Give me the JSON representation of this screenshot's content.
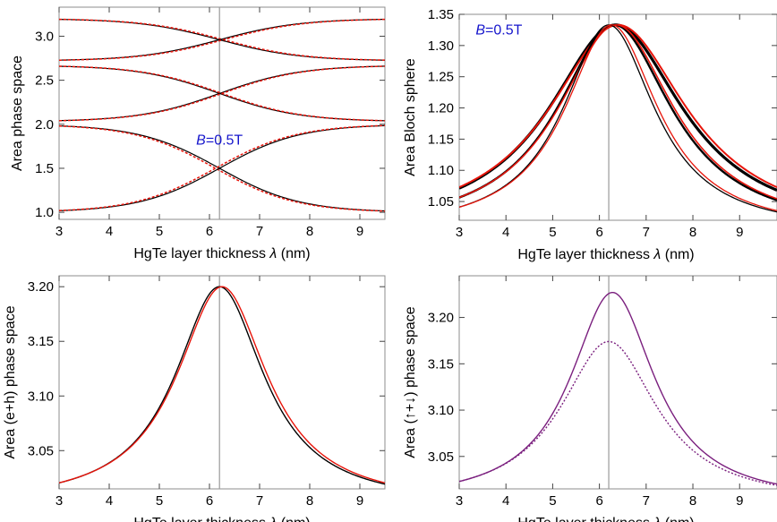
{
  "colors": {
    "black": "#000000",
    "red": "#e8140a",
    "purple": "#7a1f7e",
    "blue": "#1515cc",
    "guide": "#9a9a9a",
    "frame": "#8c8c8c"
  },
  "chart_data": [
    {
      "id": "tl",
      "type": "line",
      "xlabel_text": "HgTe layer thickness ",
      "xlabel_symbol": "λ",
      "xlabel_unit": " (nm)",
      "ylabel": "Area phase space",
      "xlim": [
        3,
        9.5
      ],
      "ylim": [
        0.92,
        3.33
      ],
      "xticks": [
        3,
        4,
        5,
        6,
        7,
        8,
        9
      ],
      "yticks": [
        1.0,
        1.5,
        2.0,
        2.5,
        3.0
      ],
      "ytick_decimals": 1,
      "vline": 6.2,
      "annotation": {
        "italic": "B",
        "rest": "=0.5T",
        "x": 6.2,
        "y": 1.77
      },
      "series": [
        {
          "color": "black",
          "style": "solid",
          "fn": "sig",
          "params": [
            3.2,
            2.72,
            6.2,
            0.8
          ]
        },
        {
          "color": "red",
          "style": "dashed",
          "fn": "sig",
          "params": [
            3.2,
            2.72,
            6.28,
            0.8
          ]
        },
        {
          "color": "black",
          "style": "solid",
          "fn": "sig",
          "params": [
            2.72,
            3.2,
            6.2,
            0.8
          ]
        },
        {
          "color": "red",
          "style": "dashed",
          "fn": "sig",
          "params": [
            2.72,
            3.2,
            6.28,
            0.8
          ]
        },
        {
          "color": "black",
          "style": "solid",
          "fn": "sig",
          "params": [
            2.67,
            2.03,
            6.2,
            0.8
          ]
        },
        {
          "color": "red",
          "style": "dashed",
          "fn": "sig",
          "params": [
            2.67,
            2.03,
            6.25,
            0.8
          ]
        },
        {
          "color": "black",
          "style": "solid",
          "fn": "sig",
          "params": [
            2.03,
            2.67,
            6.2,
            0.8
          ]
        },
        {
          "color": "red",
          "style": "dashed",
          "fn": "sig",
          "params": [
            2.03,
            2.67,
            6.25,
            0.8
          ]
        },
        {
          "color": "black",
          "style": "solid",
          "fn": "sig",
          "params": [
            2.0,
            1.0,
            6.2,
            0.8
          ]
        },
        {
          "color": "red",
          "style": "dashed",
          "fn": "sig",
          "params": [
            2.0,
            1.0,
            6.12,
            0.8
          ]
        },
        {
          "color": "black",
          "style": "solid",
          "fn": "sig",
          "params": [
            1.0,
            2.0,
            6.2,
            0.8
          ]
        },
        {
          "color": "red",
          "style": "dashed",
          "fn": "sig",
          "params": [
            1.0,
            2.0,
            6.12,
            0.8
          ]
        }
      ]
    },
    {
      "id": "tr",
      "type": "line",
      "xlabel_text": "HgTe layer thickness ",
      "xlabel_symbol": "λ",
      "xlabel_unit": " (nm)",
      "ylabel": "Area Bloch sphere",
      "xlim": [
        3,
        9.8
      ],
      "ylim": [
        1.02,
        1.35
      ],
      "xticks": [
        3,
        4,
        5,
        6,
        7,
        8,
        9
      ],
      "yticks": [
        1.05,
        1.1,
        1.15,
        1.2,
        1.25,
        1.3,
        1.35
      ],
      "ytick_decimals": 2,
      "vline": 6.2,
      "annotation": {
        "italic": "B",
        "rest": "=0.5T",
        "x": 3.85,
        "y": 1.318
      },
      "series": [
        {
          "color": "black",
          "style": "solid",
          "width": 3.2,
          "fn": "lor",
          "params": [
            1.0,
            0.333,
            6.35,
            1.75
          ]
        },
        {
          "color": "red",
          "style": "solid",
          "width": 2.0,
          "fn": "lor",
          "params": [
            1.0,
            0.333,
            6.4,
            1.8
          ]
        },
        {
          "color": "black",
          "style": "solid",
          "width": 2.4,
          "fn": "lor",
          "params": [
            1.0,
            0.333,
            6.32,
            1.5
          ]
        },
        {
          "color": "red",
          "style": "solid",
          "width": 1.6,
          "fn": "lor",
          "params": [
            1.0,
            0.333,
            6.36,
            1.52
          ]
        },
        {
          "color": "black",
          "style": "solid",
          "width": 1.3,
          "fn": "lor",
          "params": [
            1.0,
            0.333,
            6.2,
            1.2
          ]
        },
        {
          "color": "red",
          "style": "solid",
          "width": 1.3,
          "fn": "lor",
          "params": [
            1.0,
            0.333,
            6.26,
            1.22
          ]
        }
      ]
    },
    {
      "id": "bl",
      "type": "line",
      "xlabel_text": "HgTe layer thickness ",
      "xlabel_symbol": "λ",
      "xlabel_unit": " (nm)",
      "ylabel": "Area (e+h) phase space",
      "xlim": [
        3,
        9.5
      ],
      "ylim": [
        3.015,
        3.21
      ],
      "xticks": [
        3,
        4,
        5,
        6,
        7,
        8,
        9
      ],
      "yticks": [
        3.05,
        3.1,
        3.15,
        3.2
      ],
      "ytick_decimals": 2,
      "vline": 6.2,
      "series": [
        {
          "color": "black",
          "style": "solid",
          "width": 1.4,
          "fn": "lor",
          "params": [
            3.0,
            0.2,
            6.2,
            1.08
          ]
        },
        {
          "color": "red",
          "style": "solid",
          "width": 1.4,
          "fn": "lor",
          "params": [
            3.0,
            0.2,
            6.25,
            1.1
          ]
        }
      ]
    },
    {
      "id": "br",
      "type": "line",
      "xlabel_text": "HgTe layer thickness ",
      "xlabel_symbol": "λ",
      "xlabel_unit": " (nm)",
      "ylabel": "Area (↑+↓) phase space",
      "xlim": [
        3,
        9.8
      ],
      "ylim": [
        3.015,
        3.245
      ],
      "xticks": [
        3,
        4,
        5,
        6,
        7,
        8,
        9
      ],
      "yticks": [
        3.05,
        3.1,
        3.15,
        3.2
      ],
      "ytick_decimals": 2,
      "vline": 6.2,
      "series": [
        {
          "color": "purple",
          "style": "solid",
          "width": 1.4,
          "fn": "lor",
          "params": [
            3.0,
            0.227,
            6.28,
            1.1
          ]
        },
        {
          "color": "purple",
          "style": "dotted",
          "width": 1.4,
          "fn": "lor",
          "params": [
            3.0,
            0.174,
            6.2,
            1.25
          ]
        }
      ]
    }
  ]
}
